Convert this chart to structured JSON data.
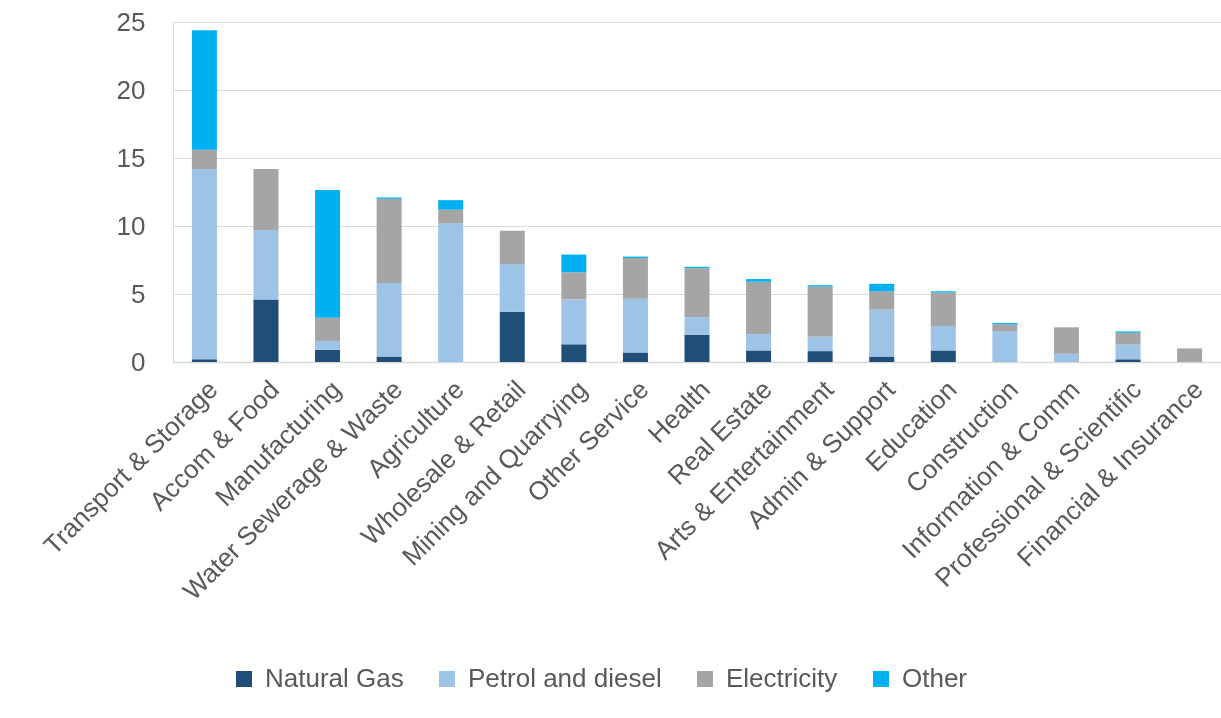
{
  "chart_data": {
    "type": "bar",
    "stacked": true,
    "categories": [
      "Transport & Storage",
      "Accom & Food",
      "Manufacturing",
      "Water Sewerage & Waste",
      "Agriculture",
      "Wholesale & Retail",
      "Mining and Quarrying",
      "Other Service",
      "Health",
      "Real Estate",
      "Arts & Entertainment",
      "Admin & Support",
      "Education",
      "Construction",
      "Information & Comm",
      "Professional & Scientific",
      "Financial & Insurance"
    ],
    "series": [
      {
        "name": "Natural Gas",
        "color": "#1f4e79",
        "values": [
          0.2,
          4.6,
          0.9,
          0.4,
          0,
          3.7,
          1.3,
          0.7,
          2.0,
          0.85,
          0.8,
          0.4,
          0.85,
          0,
          0,
          0.2,
          0
        ]
      },
      {
        "name": "Petrol and diesel",
        "color": "#9dc3e6",
        "values": [
          14.0,
          5.1,
          0.65,
          5.4,
          10.2,
          3.5,
          3.3,
          3.95,
          1.3,
          1.2,
          1.05,
          3.45,
          1.8,
          2.27,
          0.6,
          1.1,
          0
        ]
      },
      {
        "name": "Electricity",
        "color": "#a5a5a5",
        "values": [
          1.4,
          4.5,
          1.7,
          6.2,
          1.0,
          2.45,
          2.0,
          3.0,
          3.6,
          3.85,
          3.7,
          1.35,
          2.45,
          0.5,
          1.95,
          0.85,
          1.0
        ]
      },
      {
        "name": "Other",
        "color": "#00b0f0",
        "values": [
          8.8,
          0,
          9.4,
          0.1,
          0.7,
          0,
          1.3,
          0.1,
          0.1,
          0.2,
          0.1,
          0.55,
          0.1,
          0.1,
          0,
          0.1,
          0
        ]
      }
    ],
    "ylim": [
      0,
      25
    ],
    "yticks": [
      0,
      5,
      10,
      15,
      20,
      25
    ],
    "grid": "y",
    "legend": "bottom"
  }
}
